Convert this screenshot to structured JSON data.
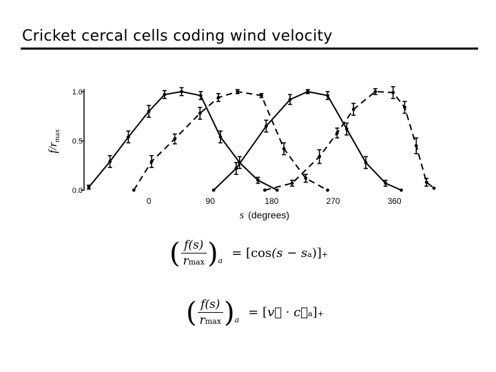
{
  "slide": {
    "title": "Cricket cercal cells coding wind velocity"
  },
  "chart_data": {
    "type": "line",
    "xlabel_var": "s",
    "xlabel_unit": "(degrees)",
    "ylabel_main": "f/r",
    "ylabel_sub": "max",
    "xlim": [
      -95,
      420
    ],
    "ylim": [
      0,
      1.0
    ],
    "xticks": [
      0,
      90,
      180,
      270,
      360
    ],
    "xtick_labels": [
      "0",
      "90",
      "180",
      "270",
      "360"
    ],
    "yticks": [
      0,
      0.5,
      1.0
    ],
    "ytick_labels": [
      "0.0",
      "0.5",
      "1.0"
    ],
    "grid": false,
    "legend": "none",
    "series": [
      {
        "style": "solid",
        "points": [
          {
            "x": -88,
            "y": 0.03,
            "err": 0.02
          },
          {
            "x": -57,
            "y": 0.29,
            "err": 0.06
          },
          {
            "x": -30,
            "y": 0.54,
            "err": 0.06
          },
          {
            "x": 0,
            "y": 0.8,
            "err": 0.06
          },
          {
            "x": 23,
            "y": 0.97,
            "err": 0.04
          },
          {
            "x": 48,
            "y": 1.0,
            "err": 0.04
          },
          {
            "x": 76,
            "y": 0.96,
            "err": 0.04
          },
          {
            "x": 105,
            "y": 0.54,
            "err": 0.06
          },
          {
            "x": 133,
            "y": 0.28,
            "err": 0.06
          },
          {
            "x": 160,
            "y": 0.1,
            "err": 0.03
          },
          {
            "x": 188,
            "y": 0.0,
            "err": 0.0
          }
        ]
      },
      {
        "style": "dashed",
        "points": [
          {
            "x": -22,
            "y": 0.0,
            "err": 0.0
          },
          {
            "x": 4,
            "y": 0.29,
            "err": 0.06
          },
          {
            "x": 38,
            "y": 0.52,
            "err": 0.05
          },
          {
            "x": 75,
            "y": 0.78,
            "err": 0.06
          },
          {
            "x": 102,
            "y": 0.94,
            "err": 0.04
          },
          {
            "x": 130,
            "y": 1.0,
            "err": 0.02
          },
          {
            "x": 165,
            "y": 0.96,
            "err": 0.02
          },
          {
            "x": 198,
            "y": 0.42,
            "err": 0.06
          },
          {
            "x": 230,
            "y": 0.12,
            "err": 0.04
          },
          {
            "x": 262,
            "y": 0.0,
            "err": 0.0
          }
        ]
      },
      {
        "style": "solid",
        "points": [
          {
            "x": 95,
            "y": 0.0,
            "err": 0.0
          },
          {
            "x": 128,
            "y": 0.22,
            "err": 0.06
          },
          {
            "x": 172,
            "y": 0.65,
            "err": 0.06
          },
          {
            "x": 207,
            "y": 0.92,
            "err": 0.05
          },
          {
            "x": 233,
            "y": 1.0,
            "err": 0.02
          },
          {
            "x": 262,
            "y": 0.96,
            "err": 0.04
          },
          {
            "x": 290,
            "y": 0.62,
            "err": 0.06
          },
          {
            "x": 318,
            "y": 0.28,
            "err": 0.06
          },
          {
            "x": 347,
            "y": 0.07,
            "err": 0.03
          },
          {
            "x": 370,
            "y": 0.0,
            "err": 0.0
          }
        ]
      },
      {
        "style": "dashed",
        "points": [
          {
            "x": 170,
            "y": 0.0,
            "err": 0.0
          },
          {
            "x": 210,
            "y": 0.07,
            "err": 0.03
          },
          {
            "x": 250,
            "y": 0.34,
            "err": 0.07
          },
          {
            "x": 276,
            "y": 0.58,
            "err": 0.05
          },
          {
            "x": 300,
            "y": 0.82,
            "err": 0.06
          },
          {
            "x": 332,
            "y": 1.0,
            "err": 0.03
          },
          {
            "x": 358,
            "y": 0.99,
            "err": 0.06
          },
          {
            "x": 375,
            "y": 0.84,
            "err": 0.06
          },
          {
            "x": 392,
            "y": 0.45,
            "err": 0.08
          },
          {
            "x": 407,
            "y": 0.08,
            "err": 0.04
          },
          {
            "x": 418,
            "y": 0.02,
            "err": 0.0
          }
        ]
      }
    ]
  },
  "equations": {
    "eq1": {
      "num": "f(s)",
      "den_var": "r",
      "den_sub": "max",
      "subscript": "a",
      "rhs_eq": "=",
      "rhs_open": "[",
      "rhs_func": "cos",
      "rhs_arg": "(s − s",
      "rhs_arg_sub": "a",
      "rhs_close": ")]",
      "rhs_tail": "+"
    },
    "eq2": {
      "num": "f(s)",
      "den_var": "r",
      "den_sub": "max",
      "subscript": "a",
      "rhs_eq": "=",
      "rhs_open": "[",
      "rhs_v": "v⃗ · c⃗",
      "rhs_v_sub": "a",
      "rhs_close": "]",
      "rhs_tail": "+"
    }
  }
}
